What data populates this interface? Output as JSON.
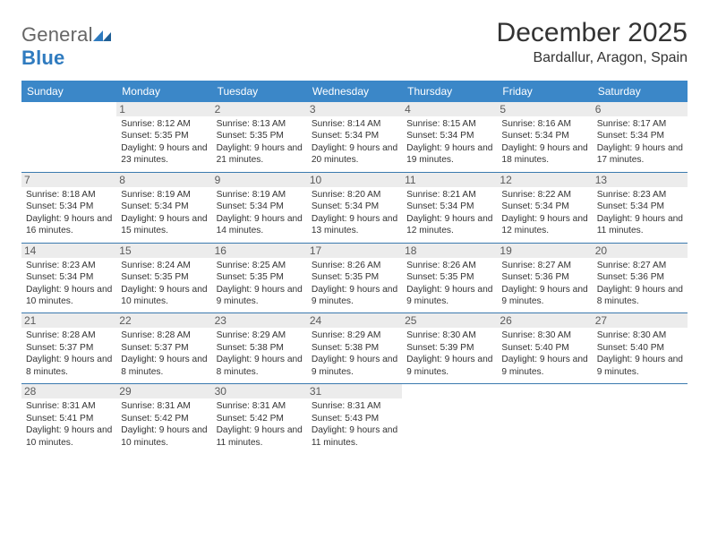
{
  "brand": {
    "part1": "General",
    "part2": "Blue"
  },
  "title": "December 2025",
  "location": "Bardallur, Aragon, Spain",
  "colors": {
    "header_bg": "#3b87c8",
    "header_text": "#ffffff",
    "daynum_bg": "#ececec",
    "rule": "#3b7aaf",
    "brand_blue": "#2f7bbf"
  },
  "weekdays": [
    "Sunday",
    "Monday",
    "Tuesday",
    "Wednesday",
    "Thursday",
    "Friday",
    "Saturday"
  ],
  "weeks": [
    [
      {
        "n": "",
        "sr": "",
        "ss": "",
        "dl": ""
      },
      {
        "n": "1",
        "sr": "8:12 AM",
        "ss": "5:35 PM",
        "dl": "9 hours and 23 minutes."
      },
      {
        "n": "2",
        "sr": "8:13 AM",
        "ss": "5:35 PM",
        "dl": "9 hours and 21 minutes."
      },
      {
        "n": "3",
        "sr": "8:14 AM",
        "ss": "5:34 PM",
        "dl": "9 hours and 20 minutes."
      },
      {
        "n": "4",
        "sr": "8:15 AM",
        "ss": "5:34 PM",
        "dl": "9 hours and 19 minutes."
      },
      {
        "n": "5",
        "sr": "8:16 AM",
        "ss": "5:34 PM",
        "dl": "9 hours and 18 minutes."
      },
      {
        "n": "6",
        "sr": "8:17 AM",
        "ss": "5:34 PM",
        "dl": "9 hours and 17 minutes."
      }
    ],
    [
      {
        "n": "7",
        "sr": "8:18 AM",
        "ss": "5:34 PM",
        "dl": "9 hours and 16 minutes."
      },
      {
        "n": "8",
        "sr": "8:19 AM",
        "ss": "5:34 PM",
        "dl": "9 hours and 15 minutes."
      },
      {
        "n": "9",
        "sr": "8:19 AM",
        "ss": "5:34 PM",
        "dl": "9 hours and 14 minutes."
      },
      {
        "n": "10",
        "sr": "8:20 AM",
        "ss": "5:34 PM",
        "dl": "9 hours and 13 minutes."
      },
      {
        "n": "11",
        "sr": "8:21 AM",
        "ss": "5:34 PM",
        "dl": "9 hours and 12 minutes."
      },
      {
        "n": "12",
        "sr": "8:22 AM",
        "ss": "5:34 PM",
        "dl": "9 hours and 12 minutes."
      },
      {
        "n": "13",
        "sr": "8:23 AM",
        "ss": "5:34 PM",
        "dl": "9 hours and 11 minutes."
      }
    ],
    [
      {
        "n": "14",
        "sr": "8:23 AM",
        "ss": "5:34 PM",
        "dl": "9 hours and 10 minutes."
      },
      {
        "n": "15",
        "sr": "8:24 AM",
        "ss": "5:35 PM",
        "dl": "9 hours and 10 minutes."
      },
      {
        "n": "16",
        "sr": "8:25 AM",
        "ss": "5:35 PM",
        "dl": "9 hours and 9 minutes."
      },
      {
        "n": "17",
        "sr": "8:26 AM",
        "ss": "5:35 PM",
        "dl": "9 hours and 9 minutes."
      },
      {
        "n": "18",
        "sr": "8:26 AM",
        "ss": "5:35 PM",
        "dl": "9 hours and 9 minutes."
      },
      {
        "n": "19",
        "sr": "8:27 AM",
        "ss": "5:36 PM",
        "dl": "9 hours and 9 minutes."
      },
      {
        "n": "20",
        "sr": "8:27 AM",
        "ss": "5:36 PM",
        "dl": "9 hours and 8 minutes."
      }
    ],
    [
      {
        "n": "21",
        "sr": "8:28 AM",
        "ss": "5:37 PM",
        "dl": "9 hours and 8 minutes."
      },
      {
        "n": "22",
        "sr": "8:28 AM",
        "ss": "5:37 PM",
        "dl": "9 hours and 8 minutes."
      },
      {
        "n": "23",
        "sr": "8:29 AM",
        "ss": "5:38 PM",
        "dl": "9 hours and 8 minutes."
      },
      {
        "n": "24",
        "sr": "8:29 AM",
        "ss": "5:38 PM",
        "dl": "9 hours and 9 minutes."
      },
      {
        "n": "25",
        "sr": "8:30 AM",
        "ss": "5:39 PM",
        "dl": "9 hours and 9 minutes."
      },
      {
        "n": "26",
        "sr": "8:30 AM",
        "ss": "5:40 PM",
        "dl": "9 hours and 9 minutes."
      },
      {
        "n": "27",
        "sr": "8:30 AM",
        "ss": "5:40 PM",
        "dl": "9 hours and 9 minutes."
      }
    ],
    [
      {
        "n": "28",
        "sr": "8:31 AM",
        "ss": "5:41 PM",
        "dl": "9 hours and 10 minutes."
      },
      {
        "n": "29",
        "sr": "8:31 AM",
        "ss": "5:42 PM",
        "dl": "9 hours and 10 minutes."
      },
      {
        "n": "30",
        "sr": "8:31 AM",
        "ss": "5:42 PM",
        "dl": "9 hours and 11 minutes."
      },
      {
        "n": "31",
        "sr": "8:31 AM",
        "ss": "5:43 PM",
        "dl": "9 hours and 11 minutes."
      },
      {
        "n": "",
        "sr": "",
        "ss": "",
        "dl": ""
      },
      {
        "n": "",
        "sr": "",
        "ss": "",
        "dl": ""
      },
      {
        "n": "",
        "sr": "",
        "ss": "",
        "dl": ""
      }
    ]
  ],
  "labels": {
    "sunrise": "Sunrise: ",
    "sunset": "Sunset: ",
    "daylight": "Daylight: "
  }
}
